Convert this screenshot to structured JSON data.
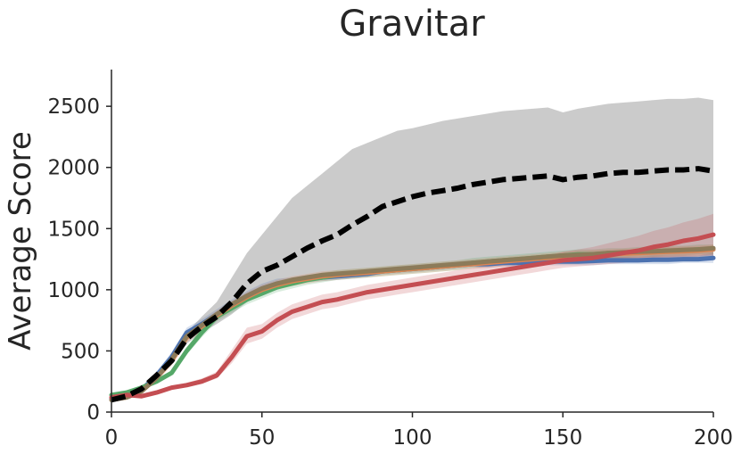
{
  "chart_data": {
    "type": "line",
    "title": "Gravitar",
    "xlabel": "",
    "ylabel": "Average Score",
    "xlim": [
      0,
      200
    ],
    "ylim": [
      0,
      2800
    ],
    "xticks": [
      0,
      50,
      100,
      150,
      200
    ],
    "yticks": [
      0,
      500,
      1000,
      1500,
      2000,
      2500
    ],
    "xtick_labels": [
      "0",
      "50",
      "100",
      "150",
      "200"
    ],
    "ytick_labels": [
      "0",
      "500",
      "1000",
      "1500",
      "2000",
      "2500"
    ],
    "grid": false,
    "legend": "none",
    "x": [
      0,
      5,
      10,
      15,
      20,
      25,
      30,
      35,
      40,
      45,
      50,
      55,
      60,
      65,
      70,
      75,
      80,
      85,
      90,
      95,
      100,
      105,
      110,
      115,
      120,
      125,
      130,
      135,
      140,
      145,
      150,
      155,
      160,
      165,
      170,
      175,
      180,
      185,
      190,
      195,
      200
    ],
    "series": [
      {
        "color": "#000000",
        "dash": true,
        "band_color": "#c8c8c8",
        "values": [
          100,
          130,
          190,
          300,
          420,
          600,
          700,
          780,
          900,
          1050,
          1150,
          1200,
          1270,
          1340,
          1400,
          1450,
          1530,
          1600,
          1680,
          1720,
          1760,
          1790,
          1810,
          1830,
          1860,
          1880,
          1900,
          1910,
          1920,
          1930,
          1900,
          1920,
          1930,
          1950,
          1960,
          1960,
          1970,
          1980,
          1980,
          1990,
          1970
        ],
        "band_low": [
          100,
          120,
          170,
          270,
          390,
          560,
          650,
          720,
          800,
          900,
          960,
          1000,
          1040,
          1070,
          1100,
          1120,
          1140,
          1160,
          1170,
          1180,
          1190,
          1190,
          1200,
          1200,
          1210,
          1210,
          1220,
          1220,
          1220,
          1230,
          1230,
          1230,
          1230,
          1240,
          1240,
          1240,
          1240,
          1240,
          1250,
          1250,
          1250
        ],
        "band_high": [
          110,
          140,
          210,
          330,
          460,
          650,
          780,
          900,
          1100,
          1300,
          1450,
          1600,
          1750,
          1850,
          1950,
          2050,
          2150,
          2200,
          2250,
          2300,
          2320,
          2350,
          2380,
          2400,
          2420,
          2440,
          2460,
          2470,
          2480,
          2490,
          2450,
          2480,
          2500,
          2520,
          2530,
          2540,
          2550,
          2560,
          2560,
          2570,
          2550
        ]
      },
      {
        "color": "#4c72b0",
        "dash": false,
        "band_color": "#4c72b0",
        "values": [
          110,
          130,
          180,
          300,
          450,
          650,
          720,
          800,
          880,
          950,
          1010,
          1050,
          1070,
          1090,
          1100,
          1110,
          1120,
          1130,
          1150,
          1160,
          1170,
          1180,
          1190,
          1200,
          1210,
          1210,
          1220,
          1220,
          1225,
          1230,
          1230,
          1230,
          1235,
          1240,
          1240,
          1240,
          1245,
          1245,
          1250,
          1250,
          1260
        ],
        "band_low": [
          100,
          120,
          160,
          270,
          410,
          610,
          680,
          760,
          840,
          910,
          970,
          1010,
          1040,
          1060,
          1070,
          1080,
          1090,
          1100,
          1120,
          1130,
          1140,
          1150,
          1160,
          1170,
          1180,
          1180,
          1190,
          1190,
          1200,
          1200,
          1200,
          1200,
          1200,
          1210,
          1210,
          1210,
          1210,
          1210,
          1220,
          1220,
          1220
        ],
        "band_high": [
          120,
          140,
          200,
          330,
          490,
          690,
          760,
          840,
          920,
          990,
          1050,
          1090,
          1100,
          1120,
          1130,
          1140,
          1150,
          1160,
          1180,
          1190,
          1200,
          1210,
          1220,
          1230,
          1240,
          1240,
          1250,
          1250,
          1260,
          1260,
          1260,
          1260,
          1270,
          1270,
          1270,
          1270,
          1280,
          1280,
          1280,
          1280,
          1300
        ]
      },
      {
        "color": "#55a868",
        "dash": false,
        "band_color": "#55a868",
        "values": [
          140,
          160,
          200,
          250,
          320,
          500,
          650,
          780,
          850,
          920,
          970,
          1020,
          1050,
          1080,
          1100,
          1120,
          1130,
          1140,
          1150,
          1160,
          1170,
          1180,
          1190,
          1200,
          1220,
          1230,
          1240,
          1250,
          1260,
          1270,
          1280,
          1290,
          1290,
          1300,
          1300,
          1310,
          1310,
          1320,
          1320,
          1330,
          1330
        ],
        "band_low": [
          130,
          150,
          180,
          230,
          300,
          470,
          610,
          740,
          810,
          880,
          930,
          980,
          1010,
          1040,
          1060,
          1080,
          1090,
          1100,
          1110,
          1120,
          1130,
          1140,
          1150,
          1160,
          1180,
          1190,
          1200,
          1210,
          1220,
          1230,
          1240,
          1250,
          1250,
          1260,
          1260,
          1270,
          1270,
          1280,
          1280,
          1290,
          1290
        ],
        "band_high": [
          150,
          170,
          220,
          270,
          340,
          530,
          690,
          820,
          890,
          960,
          1010,
          1060,
          1090,
          1120,
          1140,
          1160,
          1170,
          1180,
          1190,
          1200,
          1210,
          1220,
          1230,
          1240,
          1260,
          1270,
          1280,
          1290,
          1300,
          1310,
          1320,
          1330,
          1330,
          1340,
          1340,
          1350,
          1350,
          1360,
          1360,
          1370,
          1370
        ]
      },
      {
        "color": "#dd8452",
        "dash": false,
        "band_color": "#dd8452",
        "values": [
          100,
          120,
          170,
          280,
          420,
          610,
          700,
          790,
          870,
          940,
          1000,
          1040,
          1070,
          1090,
          1110,
          1120,
          1130,
          1140,
          1150,
          1160,
          1170,
          1180,
          1190,
          1200,
          1210,
          1220,
          1230,
          1240,
          1250,
          1260,
          1270,
          1280,
          1285,
          1290,
          1295,
          1300,
          1305,
          1310,
          1315,
          1320,
          1330
        ],
        "band_low": [
          90,
          110,
          150,
          250,
          380,
          570,
          660,
          750,
          830,
          900,
          960,
          1000,
          1030,
          1050,
          1070,
          1080,
          1090,
          1100,
          1110,
          1120,
          1130,
          1140,
          1150,
          1160,
          1170,
          1180,
          1190,
          1200,
          1210,
          1220,
          1230,
          1240,
          1245,
          1250,
          1255,
          1260,
          1265,
          1270,
          1275,
          1280,
          1290
        ],
        "band_high": [
          110,
          130,
          190,
          310,
          460,
          650,
          740,
          830,
          910,
          980,
          1040,
          1080,
          1110,
          1130,
          1150,
          1160,
          1170,
          1180,
          1190,
          1200,
          1210,
          1220,
          1230,
          1240,
          1250,
          1260,
          1270,
          1280,
          1290,
          1300,
          1310,
          1320,
          1325,
          1330,
          1335,
          1340,
          1345,
          1350,
          1355,
          1360,
          1370
        ]
      },
      {
        "color": "#c44e52",
        "dash": false,
        "band_color": "#c44e52",
        "values": [
          120,
          140,
          130,
          160,
          200,
          220,
          250,
          300,
          450,
          620,
          660,
          750,
          820,
          860,
          900,
          920,
          950,
          980,
          1000,
          1020,
          1040,
          1060,
          1080,
          1100,
          1120,
          1140,
          1160,
          1180,
          1200,
          1220,
          1240,
          1250,
          1260,
          1280,
          1300,
          1320,
          1350,
          1370,
          1400,
          1420,
          1450
        ],
        "band_low": [
          110,
          130,
          120,
          150,
          185,
          205,
          230,
          275,
          400,
          560,
          600,
          690,
          760,
          800,
          840,
          860,
          890,
          920,
          940,
          960,
          980,
          1000,
          1020,
          1040,
          1060,
          1080,
          1100,
          1120,
          1140,
          1160,
          1180,
          1190,
          1200,
          1210,
          1220,
          1230,
          1240,
          1250,
          1260,
          1270,
          1280
        ],
        "band_high": [
          130,
          150,
          140,
          175,
          215,
          240,
          275,
          330,
          510,
          690,
          720,
          810,
          880,
          920,
          960,
          980,
          1010,
          1040,
          1060,
          1080,
          1100,
          1120,
          1140,
          1160,
          1180,
          1200,
          1220,
          1240,
          1260,
          1280,
          1310,
          1330,
          1350,
          1380,
          1410,
          1440,
          1480,
          1510,
          1550,
          1580,
          1620
        ]
      },
      {
        "color": "#8c7b5a",
        "dash": false,
        "band_color": "#8c7b5a",
        "values": [
          100,
          120,
          170,
          280,
          430,
          620,
          710,
          800,
          880,
          950,
          1010,
          1050,
          1080,
          1100,
          1120,
          1130,
          1140,
          1150,
          1160,
          1170,
          1180,
          1190,
          1200,
          1210,
          1220,
          1230,
          1240,
          1250,
          1260,
          1270,
          1280,
          1285,
          1290,
          1300,
          1305,
          1310,
          1315,
          1320,
          1325,
          1330,
          1340
        ],
        "band_low": [
          90,
          110,
          160,
          260,
          410,
          600,
          690,
          780,
          860,
          930,
          990,
          1030,
          1060,
          1080,
          1100,
          1110,
          1120,
          1130,
          1140,
          1150,
          1160,
          1170,
          1180,
          1190,
          1200,
          1210,
          1220,
          1230,
          1240,
          1250,
          1260,
          1265,
          1270,
          1280,
          1285,
          1290,
          1295,
          1300,
          1305,
          1310,
          1320
        ],
        "band_high": [
          110,
          130,
          180,
          300,
          450,
          640,
          730,
          820,
          900,
          970,
          1030,
          1070,
          1100,
          1120,
          1140,
          1150,
          1160,
          1170,
          1180,
          1190,
          1200,
          1210,
          1220,
          1230,
          1240,
          1250,
          1260,
          1270,
          1280,
          1290,
          1300,
          1305,
          1310,
          1320,
          1325,
          1330,
          1335,
          1340,
          1345,
          1350,
          1360
        ]
      }
    ]
  }
}
